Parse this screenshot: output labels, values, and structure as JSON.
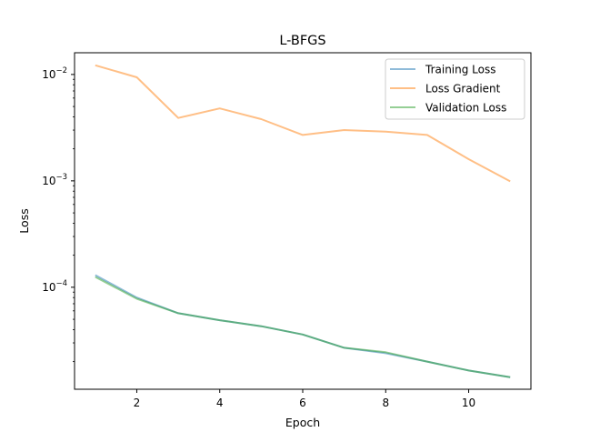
{
  "chart_data": {
    "type": "line",
    "title": "L-BFGS",
    "xlabel": "Epoch",
    "ylabel": "Loss",
    "yscale": "log",
    "xlim": [
      0.5,
      11.5
    ],
    "ylim": [
      1.1e-05,
      0.016
    ],
    "grid": false,
    "legend_position": "upper right",
    "x": [
      1,
      2,
      3,
      4,
      5,
      6,
      7,
      8,
      9,
      10,
      11
    ],
    "x_ticks": [
      2,
      4,
      6,
      8,
      10
    ],
    "x_tick_labels": [
      "2",
      "4",
      "6",
      "8",
      "10"
    ],
    "y_ticks": [
      0.0001,
      0.001,
      0.01
    ],
    "y_tick_labels": [
      {
        "base": "10",
        "exp": "−4"
      },
      {
        "base": "10",
        "exp": "−3"
      },
      {
        "base": "10",
        "exp": "−2"
      }
    ],
    "series": [
      {
        "name": "Training Loss",
        "color": "#1f77b4",
        "values": [
          0.00013,
          8e-05,
          5.7e-05,
          4.9e-05,
          4.3e-05,
          3.6e-05,
          2.7e-05,
          2.4e-05,
          2e-05,
          1.65e-05,
          1.43e-05
        ]
      },
      {
        "name": "Loss Gradient",
        "color": "#ff7f0e",
        "values": [
          0.0122,
          0.0094,
          0.0039,
          0.0048,
          0.0038,
          0.0027,
          0.003,
          0.0029,
          0.0027,
          0.0016,
          0.00099
        ]
      },
      {
        "name": "Validation Loss",
        "color": "#2ca02c",
        "values": [
          0.000125,
          7.8e-05,
          5.7e-05,
          4.9e-05,
          4.3e-05,
          3.6e-05,
          2.7e-05,
          2.45e-05,
          2e-05,
          1.65e-05,
          1.43e-05
        ]
      }
    ]
  }
}
